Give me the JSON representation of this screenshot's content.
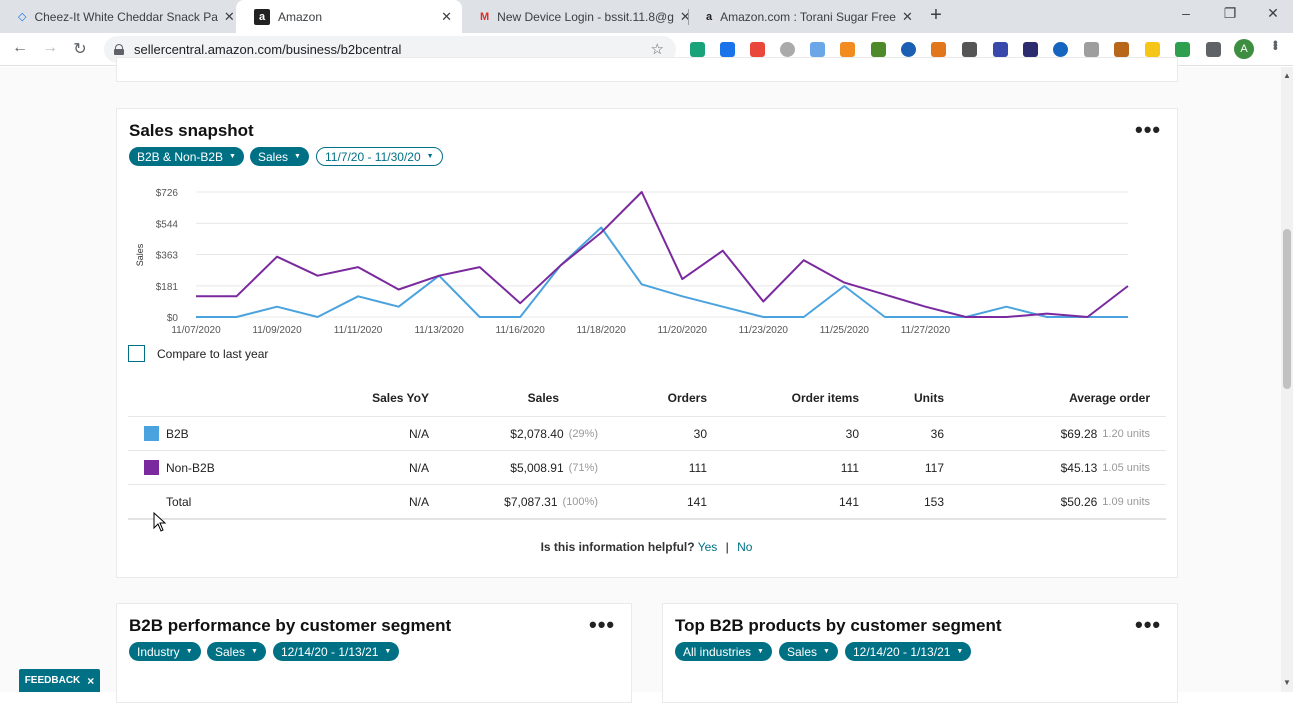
{
  "browser": {
    "tabs": [
      {
        "title": "Cheez-It White Cheddar Snack Pa",
        "active": false
      },
      {
        "title": "Amazon",
        "active": true
      },
      {
        "title": "New Device Login - bssit.11.8@g",
        "active": false
      },
      {
        "title": "Amazon.com : Torani Sugar Free",
        "active": false
      }
    ],
    "url": "sellercentral.amazon.com/business/b2bcentral",
    "avatar_letter": "A"
  },
  "snapshot": {
    "title": "Sales snapshot",
    "filters": [
      "B2B & Non-B2B",
      "Sales",
      "11/7/20 - 11/30/20"
    ],
    "compare_label": "Compare to last year",
    "helpful_question": "Is this information helpful?",
    "helpful_yes": "Yes",
    "helpful_sep": "|",
    "helpful_no": "No"
  },
  "chart_data": {
    "type": "line",
    "ylabel": "Sales",
    "yticks": [
      "$726",
      "$544",
      "$363",
      "$181",
      "$0"
    ],
    "ytick_values": [
      726,
      544,
      363,
      181,
      0
    ],
    "ylim": [
      0,
      726
    ],
    "xticks": [
      "11/07/2020",
      "11/09/2020",
      "11/11/2020",
      "11/13/2020",
      "11/16/2020",
      "11/18/2020",
      "11/20/2020",
      "11/23/2020",
      "11/25/2020",
      "11/27/2020"
    ],
    "xtick_index": [
      0,
      2,
      4,
      6,
      8,
      10,
      12,
      14,
      16,
      18
    ],
    "n_points": 24,
    "grid": true,
    "series": [
      {
        "key": "B2B",
        "color": "#4aa3df",
        "values": [
          0,
          0,
          60,
          0,
          120,
          60,
          240,
          0,
          0,
          300,
          520,
          190,
          120,
          60,
          0,
          0,
          180,
          0,
          0,
          0,
          60,
          0,
          0,
          0
        ]
      },
      {
        "key": "Non-B2B",
        "color": "#7a2a9e",
        "values": [
          120,
          120,
          350,
          240,
          290,
          160,
          240,
          290,
          80,
          300,
          490,
          726,
          220,
          385,
          90,
          330,
          200,
          130,
          60,
          0,
          0,
          20,
          0,
          180
        ]
      }
    ]
  },
  "table": {
    "headers": [
      "Sales YoY",
      "Sales",
      "Orders",
      "Order items",
      "Units",
      "Average order"
    ],
    "rows": [
      {
        "label": "B2B",
        "color": "#4aa3df",
        "yoy": "N/A",
        "sales": "$2,078.40",
        "sales_pct": "(29%)",
        "orders": "30",
        "order_items": "30",
        "units": "36",
        "avg": "$69.28",
        "avg_units": "1.20 units"
      },
      {
        "label": "Non-B2B",
        "color": "#7a2a9e",
        "yoy": "N/A",
        "sales": "$5,008.91",
        "sales_pct": "(71%)",
        "orders": "111",
        "order_items": "111",
        "units": "117",
        "avg": "$45.13",
        "avg_units": "1.05 units"
      },
      {
        "label": "Total",
        "color": "",
        "yoy": "N/A",
        "sales": "$7,087.31",
        "sales_pct": "(100%)",
        "orders": "141",
        "order_items": "141",
        "units": "153",
        "avg": "$50.26",
        "avg_units": "1.09 units"
      }
    ]
  },
  "segment_card": {
    "title": "B2B performance by customer segment",
    "filters": [
      "Industry",
      "Sales",
      "12/14/20 - 1/13/21"
    ]
  },
  "products_card": {
    "title": "Top B2B products by customer segment",
    "filters": [
      "All industries",
      "Sales",
      "12/14/20 - 1/13/21"
    ]
  },
  "feedback_label": "FEEDBACK",
  "feedback_close": "×"
}
